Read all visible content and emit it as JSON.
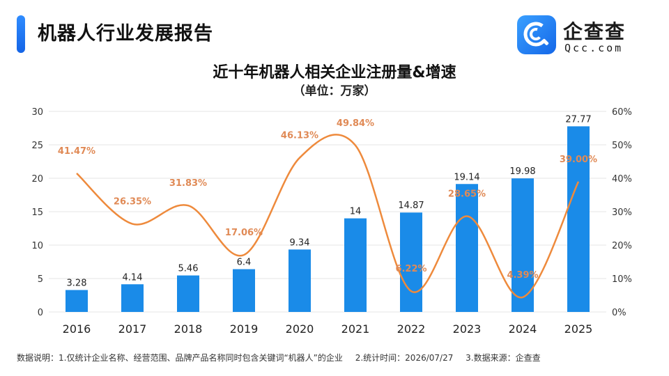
{
  "header": {
    "title": "机器人行业发展报告",
    "logo_cn": "企查查",
    "logo_en": "Qcc.com"
  },
  "chart_data": {
    "type": "bar",
    "title": "近十年机器人相关企业注册量&增速",
    "subtitle": "（单位：万家）",
    "categories": [
      "2016",
      "2017",
      "2018",
      "2019",
      "2020",
      "2021",
      "2022",
      "2023",
      "2024",
      "2025"
    ],
    "series": [
      {
        "type": "bar",
        "axis": "left",
        "values": [
          3.28,
          4.14,
          5.46,
          6.4,
          9.34,
          14,
          14.87,
          19.14,
          19.98,
          27.77
        ],
        "labels": [
          "3.28",
          "4.14",
          "5.46",
          "6.4",
          "9.34",
          "14",
          "14.87",
          "19.14",
          "19.98",
          "27.77"
        ]
      },
      {
        "type": "line",
        "axis": "right",
        "values": [
          41.47,
          26.35,
          31.83,
          17.06,
          46.13,
          49.84,
          6.22,
          28.65,
          4.39,
          39.0
        ],
        "labels": [
          "41.47%",
          "26.35%",
          "31.83%",
          "17.06%",
          "46.13%",
          "49.84%",
          "6.22%",
          "28.65%",
          "4.39%",
          "39.00%"
        ]
      }
    ],
    "y_left": {
      "lim": [
        0,
        30
      ],
      "ticks": [
        "0",
        "5",
        "10",
        "15",
        "20",
        "25",
        "30"
      ]
    },
    "y_right": {
      "lim": [
        0,
        60
      ],
      "ticks": [
        "0%",
        "10%",
        "20%",
        "30%",
        "40%",
        "50%",
        "60%"
      ]
    },
    "grid": true,
    "colors": {
      "bar": "#1a8be8",
      "line": "#ee8a3c",
      "line_label": "#e08a56",
      "grid": "#e6e6e6"
    }
  },
  "footer": {
    "note1": "数据说明：1.仅统计企业名称、经营范围、品牌产品名称同时包含关键词“机器人”的企业",
    "note2": "2.统计时间：2026/07/27",
    "note3": "3.数据来源：企查查"
  }
}
